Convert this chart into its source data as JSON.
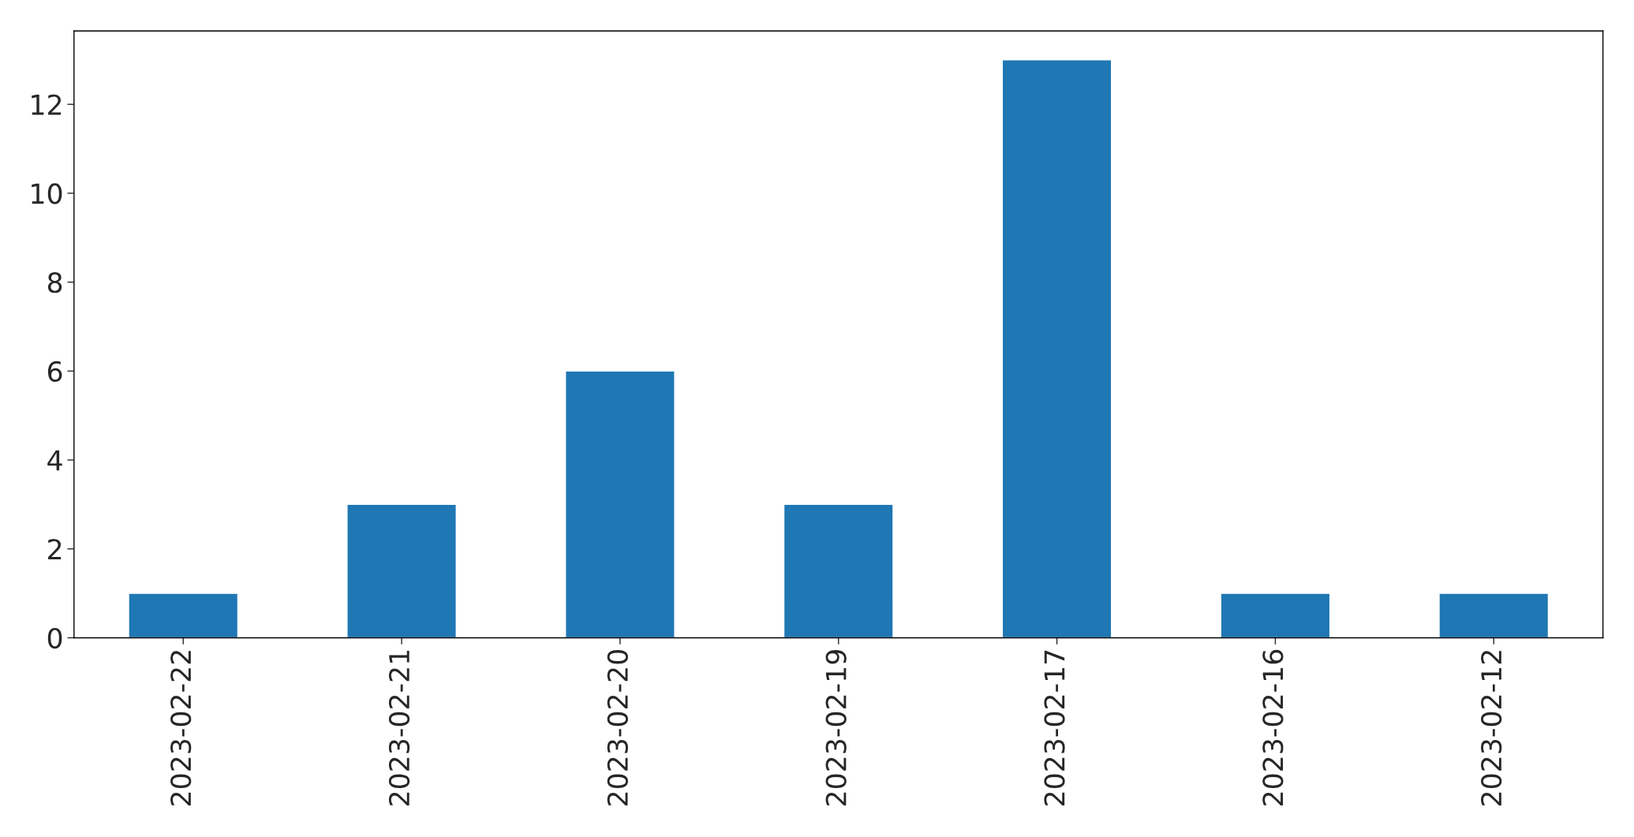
{
  "chart_data": {
    "type": "bar",
    "categories": [
      "2023-02-22",
      "2023-02-21",
      "2023-02-20",
      "2023-02-19",
      "2023-02-17",
      "2023-02-16",
      "2023-02-12"
    ],
    "values": [
      1,
      3,
      6,
      3,
      13,
      1,
      1
    ],
    "color": "#1f77b4",
    "ylim": [
      0,
      13.65
    ],
    "yticks": [
      0,
      2,
      4,
      6,
      8,
      10,
      12
    ],
    "grid": false
  }
}
